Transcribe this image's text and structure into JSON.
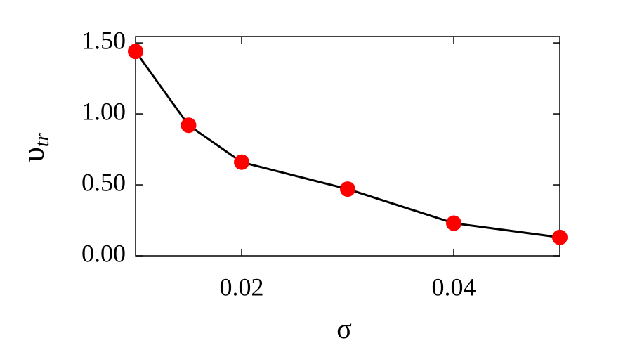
{
  "chart_data": {
    "type": "line",
    "x_label": "σ",
    "y_label": "υ",
    "y_label_subscript": "tr",
    "x": [
      0.01,
      0.015,
      0.02,
      0.03,
      0.04,
      0.05
    ],
    "values": [
      1.44,
      0.92,
      0.66,
      0.47,
      0.23,
      0.13
    ],
    "color": "#ff0000",
    "line_color": "#000000",
    "xlim": [
      0.01,
      0.05
    ],
    "xticks": [
      0.02,
      0.04
    ],
    "ylim": [
      0,
      1.545
    ],
    "yticks": [
      {
        "value": 0,
        "label": "0.00"
      },
      {
        "value": 0.5,
        "label": "0.50"
      },
      {
        "value": 1.0,
        "label": "1.00"
      },
      {
        "value": 1.5,
        "label": "1.50"
      }
    ]
  }
}
